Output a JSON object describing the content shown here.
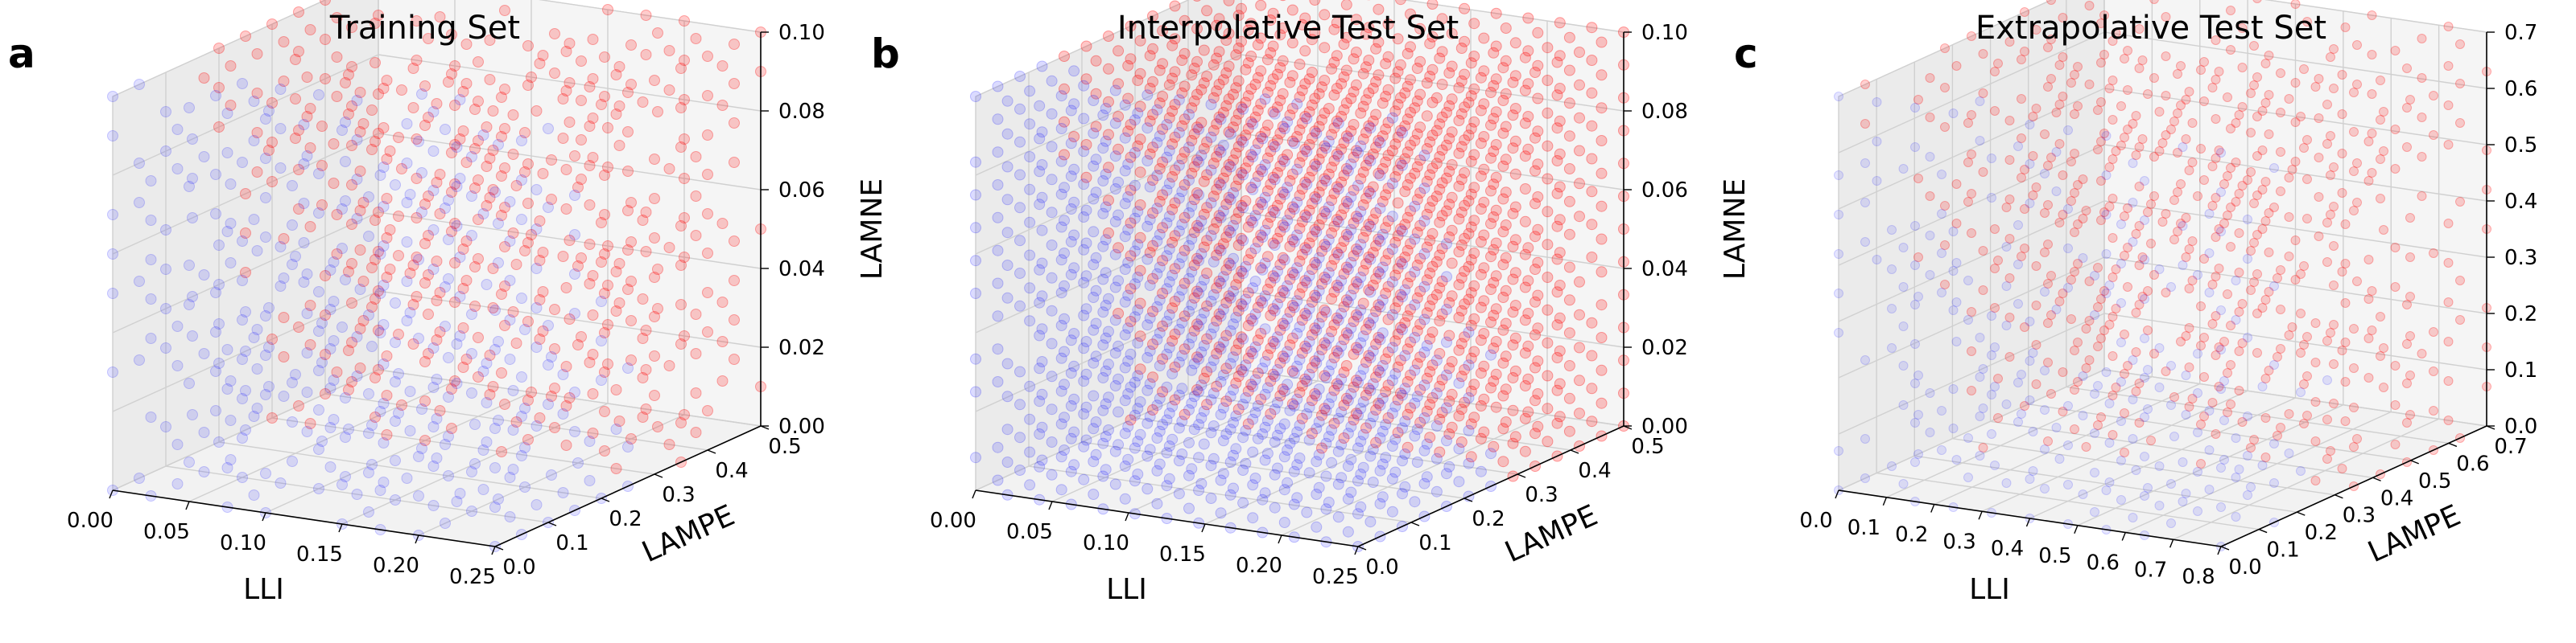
{
  "figure": {
    "panels": [
      "a",
      "b",
      "c"
    ]
  },
  "chart_data": [
    {
      "type": "scatter",
      "panel_label": "a",
      "title": "Training Set",
      "xlabel": "LLI",
      "ylabel": "LAMPE",
      "zlabel": "LAMNE",
      "xlim": [
        0,
        0.25
      ],
      "ylim": [
        0,
        0.5
      ],
      "zlim": [
        0,
        0.1
      ],
      "xticks": [
        "0.00",
        "0.05",
        "0.10",
        "0.15",
        "0.20",
        "0.25"
      ],
      "yticks": [
        "0.0",
        "0.1",
        "0.2",
        "0.3",
        "0.4",
        "0.5"
      ],
      "zticks": [
        "0.00",
        "0.02",
        "0.04",
        "0.06",
        "0.08",
        "0.10"
      ],
      "grid": true,
      "series": [
        {
          "color": "#0000ff",
          "alpha": 0.12,
          "region": "low-LAMPE",
          "grid_steps": 6
        },
        {
          "color": "#ff0000",
          "alpha": 0.2,
          "region": "high-LAMPE",
          "grid_steps": 6
        }
      ]
    },
    {
      "type": "scatter",
      "panel_label": "b",
      "title": "Interpolative Test Set",
      "xlabel": "LLI",
      "ylabel": "LAMPE",
      "zlabel": "LAMNE",
      "xlim": [
        0,
        0.25
      ],
      "ylim": [
        0,
        0.5
      ],
      "zlim": [
        0,
        0.1
      ],
      "xticks": [
        "0.00",
        "0.05",
        "0.10",
        "0.15",
        "0.20",
        "0.25"
      ],
      "yticks": [
        "0.0",
        "0.1",
        "0.2",
        "0.3",
        "0.4",
        "0.5"
      ],
      "zticks": [
        "0.00",
        "0.02",
        "0.04",
        "0.06",
        "0.08",
        "0.10"
      ],
      "grid": true,
      "series": [
        {
          "color": "#0000ff",
          "alpha": 0.14,
          "region": "low-LAMPE",
          "grid_steps": 8
        },
        {
          "color": "#ff0000",
          "alpha": 0.22,
          "region": "high-LAMPE",
          "grid_steps": 8
        }
      ]
    },
    {
      "type": "scatter",
      "panel_label": "c",
      "title": "Extrapolative Test Set",
      "xlabel": "LLI",
      "ylabel": "LAMPE",
      "zlabel": "LAMNE",
      "xlim": [
        0,
        0.8
      ],
      "ylim": [
        0,
        0.75
      ],
      "zlim": [
        0,
        0.75
      ],
      "xticks": [
        "0.0",
        "0.1",
        "0.2",
        "0.3",
        "0.4",
        "0.5",
        "0.6",
        "0.7",
        "0.8"
      ],
      "yticks": [
        "0.0",
        "0.1",
        "0.2",
        "0.3",
        "0.4",
        "0.5",
        "0.6",
        "0.7"
      ],
      "zticks": [
        "0.0",
        "0.1",
        "0.2",
        "0.3",
        "0.4",
        "0.5",
        "0.6",
        "0.7"
      ],
      "grid": true,
      "series": [
        {
          "color": "#0000ff",
          "alpha": 0.1,
          "region": "low-LAMPE",
          "grid_steps": 6
        },
        {
          "color": "#ff0000",
          "alpha": 0.18,
          "region": "high-LAMPE",
          "grid_steps": 6
        }
      ]
    }
  ]
}
